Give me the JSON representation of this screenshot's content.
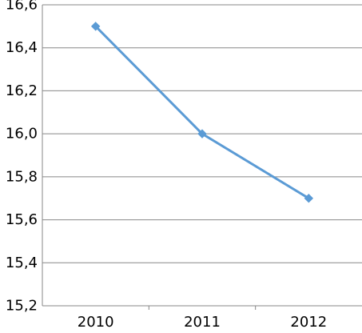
{
  "chart_data": {
    "type": "line",
    "categories": [
      "2010",
      "2011",
      "2012"
    ],
    "series": [
      {
        "values": [
          16.5,
          16.0,
          15.7
        ],
        "color": "#5b9bd5",
        "marker": "diamond"
      }
    ],
    "ylim": [
      15.2,
      16.6
    ],
    "yticks": [
      15.2,
      15.4,
      15.6,
      15.8,
      16.0,
      16.2,
      16.4,
      16.6
    ],
    "ytick_labels": [
      "15,2",
      "15,4",
      "15,6",
      "15,8",
      "16,0",
      "16,2",
      "16,4",
      "16,6"
    ],
    "grid": true,
    "legend": "none",
    "title": "",
    "xlabel": "",
    "ylabel": ""
  }
}
